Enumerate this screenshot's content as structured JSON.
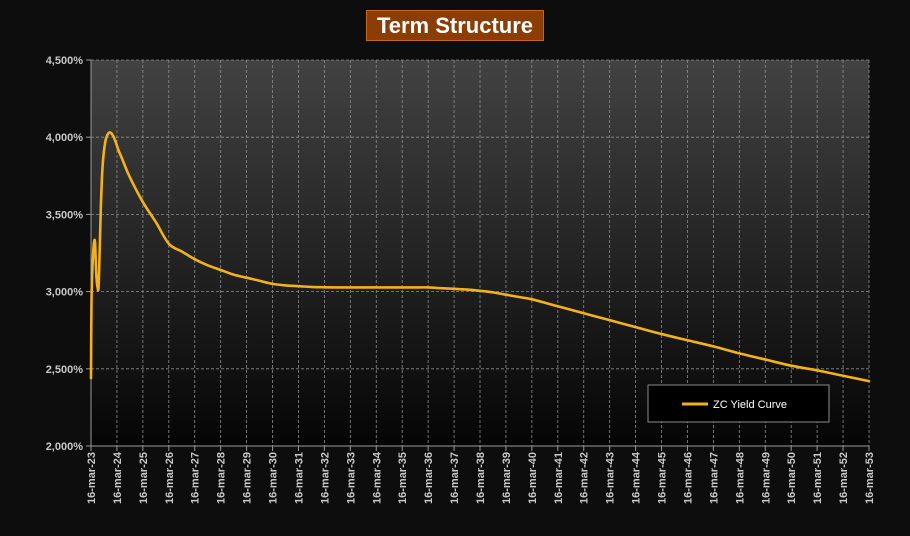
{
  "chart_data": {
    "type": "line",
    "title": "Term Structure",
    "xlabel": "",
    "ylabel": "",
    "ylim": [
      2.0,
      4.5
    ],
    "y_ticks": [
      "2,000%",
      "2,500%",
      "3,000%",
      "3,500%",
      "4,000%",
      "4,500%"
    ],
    "y_tick_values": [
      2.0,
      2.5,
      3.0,
      3.5,
      4.0,
      4.5
    ],
    "categories": [
      "16-mar-23",
      "16-mar-24",
      "16-mar-25",
      "16-mar-26",
      "16-mar-27",
      "16-mar-28",
      "16-mar-29",
      "16-mar-30",
      "16-mar-31",
      "16-mar-32",
      "16-mar-33",
      "16-mar-34",
      "16-mar-35",
      "16-mar-36",
      "16-mar-37",
      "16-mar-38",
      "16-mar-39",
      "16-mar-40",
      "16-mar-41",
      "16-mar-42",
      "16-mar-43",
      "16-mar-44",
      "16-mar-45",
      "16-mar-46",
      "16-mar-47",
      "16-mar-48",
      "16-mar-49",
      "16-mar-50",
      "16-mar-51",
      "16-mar-52",
      "16-mar-53"
    ],
    "grid": true,
    "legend_position": "bottom-right",
    "series": [
      {
        "name": "ZC Yield Curve",
        "color": "#f2b21b",
        "x": [
          0,
          0.02,
          0.08,
          0.15,
          0.2,
          0.25,
          0.3,
          0.38,
          0.45,
          0.55,
          0.65,
          0.75,
          0.85,
          0.95,
          1.05,
          1.2,
          1.5,
          2,
          2.5,
          3,
          3.5,
          4,
          4.5,
          5,
          5.5,
          6,
          6.5,
          7,
          7.5,
          8,
          8.5,
          9,
          9.5,
          10,
          10.5,
          11,
          11.5,
          12,
          12.5,
          13,
          13.5,
          14,
          14.5,
          15,
          15.5,
          16,
          16.5,
          17,
          18,
          19,
          20,
          21,
          22,
          23,
          24,
          25,
          26,
          27,
          28,
          29,
          30
        ],
        "values": [
          2.44,
          2.95,
          3.24,
          3.33,
          3.12,
          3.03,
          3.06,
          3.55,
          3.82,
          3.97,
          4.02,
          4.03,
          4.01,
          3.97,
          3.92,
          3.86,
          3.74,
          3.58,
          3.45,
          3.31,
          3.26,
          3.21,
          3.17,
          3.14,
          3.11,
          3.09,
          3.07,
          3.05,
          3.04,
          3.035,
          3.03,
          3.028,
          3.027,
          3.027,
          3.027,
          3.027,
          3.027,
          3.027,
          3.027,
          3.027,
          3.022,
          3.018,
          3.013,
          3.005,
          2.995,
          2.98,
          2.965,
          2.95,
          2.905,
          2.86,
          2.815,
          2.77,
          2.725,
          2.685,
          2.645,
          2.6,
          2.56,
          2.52,
          2.49,
          2.455,
          2.42
        ]
      }
    ]
  }
}
